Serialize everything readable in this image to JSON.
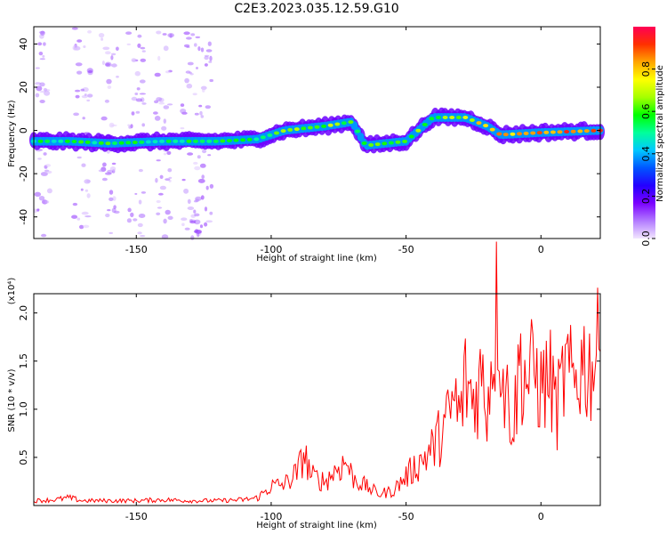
{
  "title": "C2E3.2023.035.12.59.G10",
  "chart_data": [
    {
      "type": "heatmap",
      "xlabel": "Height of straight line (km)",
      "ylabel": "Frequency (Hz)",
      "xlim": [
        -188,
        22
      ],
      "ylim": [
        -50,
        48
      ],
      "x_ticks": [
        -150,
        -100,
        -50,
        0
      ],
      "y_ticks": [
        40,
        20,
        0,
        -20,
        -40
      ],
      "colorbar": {
        "label": "Normalized spectral amplitude",
        "range": [
          0,
          1
        ],
        "ticks": [
          "0.0",
          "0.2",
          "0.4",
          "0.6",
          "0.8"
        ],
        "colors": [
          "#f2e6ff",
          "#b27bff",
          "#7a00ff",
          "#2400ff",
          "#0055ff",
          "#00c8ff",
          "#00ff9a",
          "#00ff00",
          "#a6ff00",
          "#ffff00",
          "#ffa500",
          "#ff3000",
          "#ff0055"
        ]
      },
      "ridge": [
        {
          "x": -188,
          "y": -5,
          "amp": 0.5
        },
        {
          "x": -175,
          "y": -5,
          "amp": 0.55
        },
        {
          "x": -160,
          "y": -6,
          "amp": 0.55
        },
        {
          "x": -140,
          "y": -5,
          "amp": 0.5
        },
        {
          "x": -120,
          "y": -5,
          "amp": 0.55
        },
        {
          "x": -105,
          "y": -4,
          "amp": 0.55
        },
        {
          "x": -95,
          "y": 0,
          "amp": 0.6
        },
        {
          "x": -80,
          "y": 2,
          "amp": 0.65
        },
        {
          "x": -70,
          "y": 4,
          "amp": 0.6
        },
        {
          "x": -65,
          "y": -7,
          "amp": 0.55
        },
        {
          "x": -50,
          "y": -5,
          "amp": 0.65
        },
        {
          "x": -40,
          "y": 6,
          "amp": 0.6
        },
        {
          "x": -28,
          "y": 6,
          "amp": 0.7
        },
        {
          "x": -20,
          "y": 2,
          "amp": 0.8
        },
        {
          "x": -15,
          "y": -2,
          "amp": 0.8
        },
        {
          "x": 0,
          "y": -1,
          "amp": 0.85
        },
        {
          "x": 22,
          "y": 0,
          "amp": 0.9
        }
      ],
      "scatter_bands_x": [
        -185,
        -170,
        -160,
        -150,
        -140,
        -130,
        -125
      ]
    },
    {
      "type": "line",
      "xlabel": "Height of straight line (km)",
      "ylabel": "SNR (10 * v/v)",
      "y_multiplier": "(x10⁴)",
      "xlim": [
        -188,
        22
      ],
      "ylim": [
        0,
        2.2
      ],
      "x_ticks": [
        -150,
        -100,
        -50,
        0
      ],
      "y_ticks": [
        0.5,
        1.0,
        1.5,
        2.0
      ],
      "series": [
        {
          "color": "#ff0000",
          "points": [
            [
              -188,
              0.05
            ],
            [
              -180,
              0.06
            ],
            [
              -175,
              0.08
            ],
            [
              -170,
              0.05
            ],
            [
              -160,
              0.05
            ],
            [
              -150,
              0.05
            ],
            [
              -140,
              0.06
            ],
            [
              -130,
              0.05
            ],
            [
              -120,
              0.05
            ],
            [
              -110,
              0.06
            ],
            [
              -105,
              0.08
            ],
            [
              -100,
              0.2
            ],
            [
              -95,
              0.22
            ],
            [
              -90,
              0.35
            ],
            [
              -88,
              0.55
            ],
            [
              -85,
              0.3
            ],
            [
              -80,
              0.25
            ],
            [
              -75,
              0.4
            ],
            [
              -72,
              0.45
            ],
            [
              -70,
              0.3
            ],
            [
              -65,
              0.2
            ],
            [
              -60,
              0.12
            ],
            [
              -55,
              0.15
            ],
            [
              -50,
              0.3
            ],
            [
              -45,
              0.45
            ],
            [
              -40,
              0.6
            ],
            [
              -35,
              0.85
            ],
            [
              -32,
              1.1
            ],
            [
              -30,
              0.9
            ],
            [
              -28,
              1.3
            ],
            [
              -25,
              1.1
            ],
            [
              -22,
              1.35
            ],
            [
              -20,
              1.05
            ],
            [
              -18,
              1.6
            ],
            [
              -16,
              2.15
            ],
            [
              -14,
              1.3
            ],
            [
              -10,
              0.85
            ],
            [
              -8,
              1.5
            ],
            [
              -5,
              1.3
            ],
            [
              -2,
              1.4
            ],
            [
              0,
              1.2
            ],
            [
              3,
              1.35
            ],
            [
              6,
              1.0
            ],
            [
              9,
              1.4
            ],
            [
              12,
              1.25
            ],
            [
              15,
              1.5
            ],
            [
              18,
              1.45
            ],
            [
              22,
              1.6
            ]
          ]
        }
      ]
    }
  ]
}
